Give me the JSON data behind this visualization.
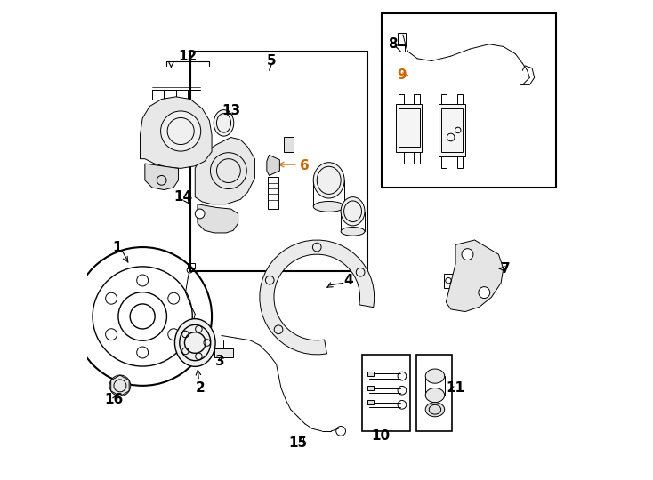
{
  "bg_color": "#ffffff",
  "line_color": "#000000",
  "accent_color": "#cc6600",
  "label_color": "#000000",
  "figsize": [
    7.34,
    5.4
  ],
  "dpi": 100
}
